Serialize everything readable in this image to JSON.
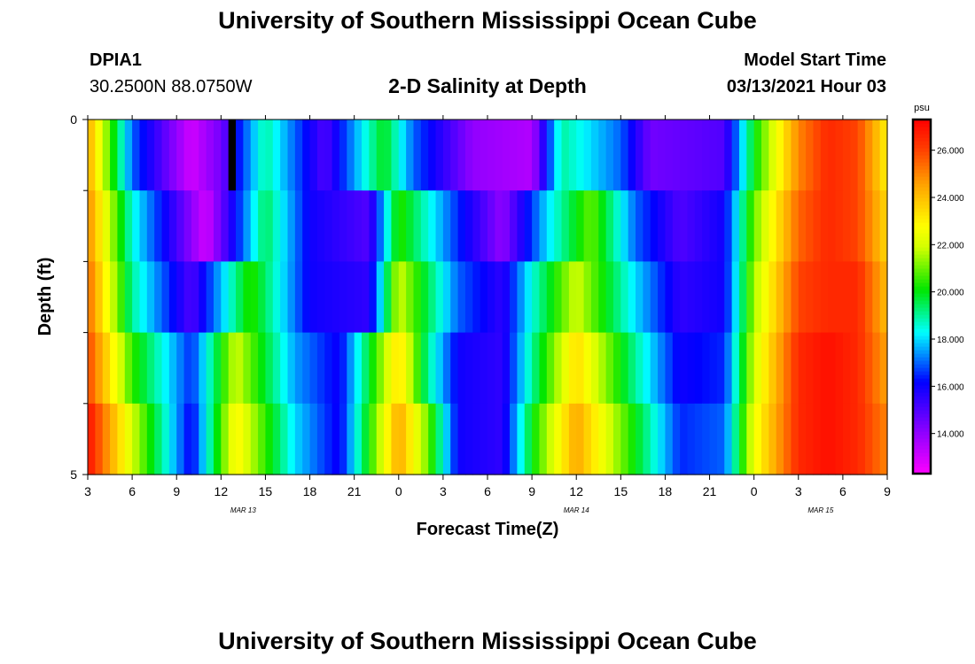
{
  "page": {
    "title_top": "University of Southern Mississippi Ocean Cube",
    "title_bottom": "University of Southern Mississippi Ocean Cube"
  },
  "header": {
    "station_id": "DPIA1",
    "station_coords": "30.2500N 88.0750W",
    "plot_title": "2-D Salinity at Depth",
    "model_start_label": "Model Start Time",
    "model_start_value": "03/13/2021 Hour 03"
  },
  "colors": {
    "background": "#ffffff",
    "text": "#000000",
    "missing_data": "#000000"
  },
  "chart_data": {
    "type": "heatmap",
    "title": "2-D Salinity at Depth",
    "xlabel": "Forecast Time(Z)",
    "ylabel": "Depth (ft)",
    "x_ticks": [
      "3",
      "6",
      "9",
      "12",
      "15",
      "18",
      "21",
      "0",
      "3",
      "6",
      "9",
      "12",
      "15",
      "18",
      "21",
      "0",
      "3",
      "6",
      "9"
    ],
    "date_labels": [
      {
        "label": "MAR 13",
        "at_tick": 3.5
      },
      {
        "label": "MAR 14",
        "at_tick": 11
      },
      {
        "label": "MAR 15",
        "at_tick": 16.5
      }
    ],
    "y_tick_labels": [
      {
        "value": 0,
        "label": "0"
      },
      {
        "value": 5,
        "label": "5"
      }
    ],
    "y_minor_ticks": [
      1,
      2,
      3,
      4
    ],
    "ylim": [
      0,
      5
    ],
    "x_range_hours": [
      0,
      54
    ],
    "depth_levels": [
      0.5,
      1.5,
      2.5,
      3.5,
      4.5
    ],
    "colorbar": {
      "unit": "psu",
      "range": [
        12.3,
        27.3
      ],
      "tick_values": [
        14,
        16,
        18,
        20,
        22,
        24,
        26
      ],
      "tick_labels": [
        "14.000",
        "16.000",
        "18.000",
        "20.000",
        "22.000",
        "24.000",
        "26.000"
      ]
    },
    "missing_data": {
      "hour_start": 9.5,
      "hour_end": 10.0,
      "depth_start": 0,
      "depth_end": 1
    },
    "series": [
      {
        "name": "depth 0-1 ft",
        "hours": [
          0,
          3,
          7,
          9,
          12,
          16,
          20,
          22,
          26,
          30,
          32,
          36,
          38,
          43,
          45,
          48,
          50,
          52,
          54
        ],
        "values": [
          24.5,
          17.0,
          13.0,
          14.5,
          19.0,
          15.0,
          20.0,
          17.0,
          14.0,
          13.5,
          19.0,
          17.0,
          14.5,
          15.0,
          20.0,
          25.0,
          26.5,
          26.0,
          23.0
        ]
      },
      {
        "name": "depth 1-2 ft",
        "hours": [
          0,
          3,
          8,
          12,
          15,
          19,
          21,
          25,
          28,
          31,
          34,
          37,
          40,
          43,
          45,
          48,
          50,
          52,
          54
        ],
        "values": [
          25.0,
          18.5,
          13.0,
          19.5,
          16.0,
          15.0,
          20.5,
          16.5,
          14.0,
          18.0,
          21.0,
          17.0,
          15.0,
          16.0,
          21.0,
          25.5,
          26.5,
          26.0,
          23.5
        ]
      },
      {
        "name": "depth 2-3 ft",
        "hours": [
          0,
          3,
          7,
          11,
          15,
          19,
          21,
          25,
          28,
          30,
          33,
          37,
          40,
          43,
          45,
          48,
          50,
          52,
          54
        ],
        "values": [
          25.5,
          19.0,
          15.0,
          20.5,
          16.0,
          15.5,
          22.0,
          17.0,
          15.5,
          18.5,
          22.0,
          18.0,
          15.5,
          16.0,
          21.5,
          26.0,
          26.5,
          26.5,
          24.0
        ]
      },
      {
        "name": "depth 3-4 ft",
        "hours": [
          0,
          3,
          7,
          10,
          14,
          17,
          21,
          23,
          25,
          28,
          30,
          33,
          37,
          40,
          43,
          45,
          48,
          50,
          52,
          54
        ],
        "values": [
          26.0,
          20.5,
          16.5,
          22.0,
          17.5,
          16.0,
          23.5,
          19.0,
          16.0,
          15.5,
          19.0,
          23.5,
          19.0,
          16.0,
          16.5,
          22.0,
          26.5,
          27.0,
          26.5,
          24.5
        ]
      },
      {
        "name": "depth 4-5 ft",
        "hours": [
          0,
          3,
          7,
          10,
          14,
          17,
          21,
          23,
          25,
          28,
          30,
          33,
          37,
          40,
          43,
          45,
          48,
          50,
          52,
          54
        ],
        "values": [
          27.0,
          22.0,
          16.0,
          23.0,
          18.0,
          16.0,
          24.5,
          21.0,
          16.0,
          15.5,
          20.0,
          24.5,
          20.0,
          16.5,
          17.0,
          22.5,
          26.5,
          27.0,
          26.5,
          25.0
        ]
      }
    ]
  }
}
